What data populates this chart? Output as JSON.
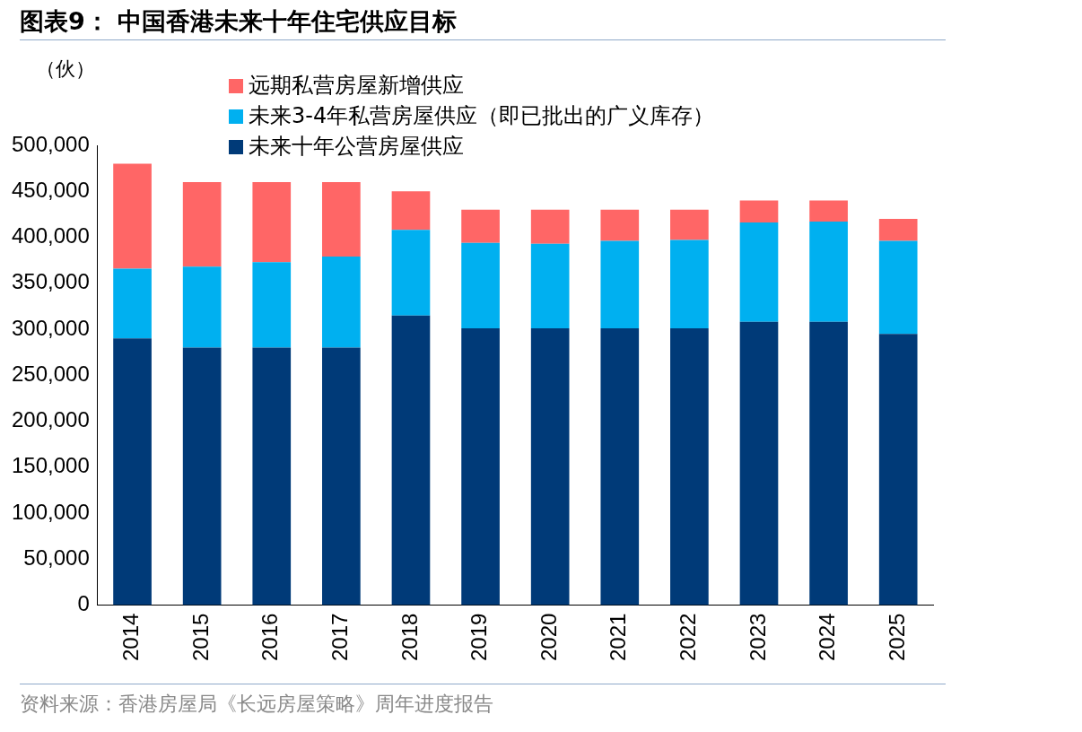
{
  "chart_data": {
    "type": "bar",
    "title": "图表9：  中国香港未来十年住宅供应目标",
    "ylabel": "（伙）",
    "categories": [
      "2014",
      "2015",
      "2016",
      "2017",
      "2018",
      "2019",
      "2020",
      "2021",
      "2022",
      "2023",
      "2024",
      "2025"
    ],
    "stacked": true,
    "series": [
      {
        "name": "未来十年公营房屋供应",
        "color": "#003a78",
        "values": [
          290000,
          280000,
          280000,
          280000,
          315000,
          301000,
          301000,
          301000,
          301000,
          308000,
          308000,
          295000
        ]
      },
      {
        "name": "未来3-4年私营房屋供应（即已批出的广义库存）",
        "color": "#00b0f0",
        "values": [
          76000,
          88000,
          93000,
          99000,
          93000,
          93000,
          92000,
          95000,
          96000,
          108000,
          109000,
          101000
        ]
      },
      {
        "name": "远期私营房屋新增供应",
        "color": "#ff6666",
        "values": [
          114000,
          92000,
          87000,
          81000,
          42000,
          36000,
          37000,
          34000,
          33000,
          24000,
          23000,
          24000
        ]
      }
    ],
    "ylim": [
      0,
      500000
    ],
    "yticks": [
      0,
      {
        "value": 50000,
        "label": "50,000"
      },
      {
        "value": 100000,
        "label": "100,000"
      },
      {
        "value": 150000,
        "label": "150,000"
      },
      {
        "value": 200000,
        "label": "200,000"
      },
      {
        "value": 250000,
        "label": "250,000"
      },
      {
        "value": 300000,
        "label": "300,000"
      },
      {
        "value": 350000,
        "label": "350,000"
      },
      {
        "value": 400000,
        "label": "400,000"
      },
      {
        "value": 450000,
        "label": "450,000"
      },
      {
        "value": 500000,
        "label": "500,000"
      }
    ],
    "grid": false,
    "legend": "top left",
    "annotations": [
      "资料来源：香港房屋局《长远房屋策略》周年进度报告"
    ]
  }
}
